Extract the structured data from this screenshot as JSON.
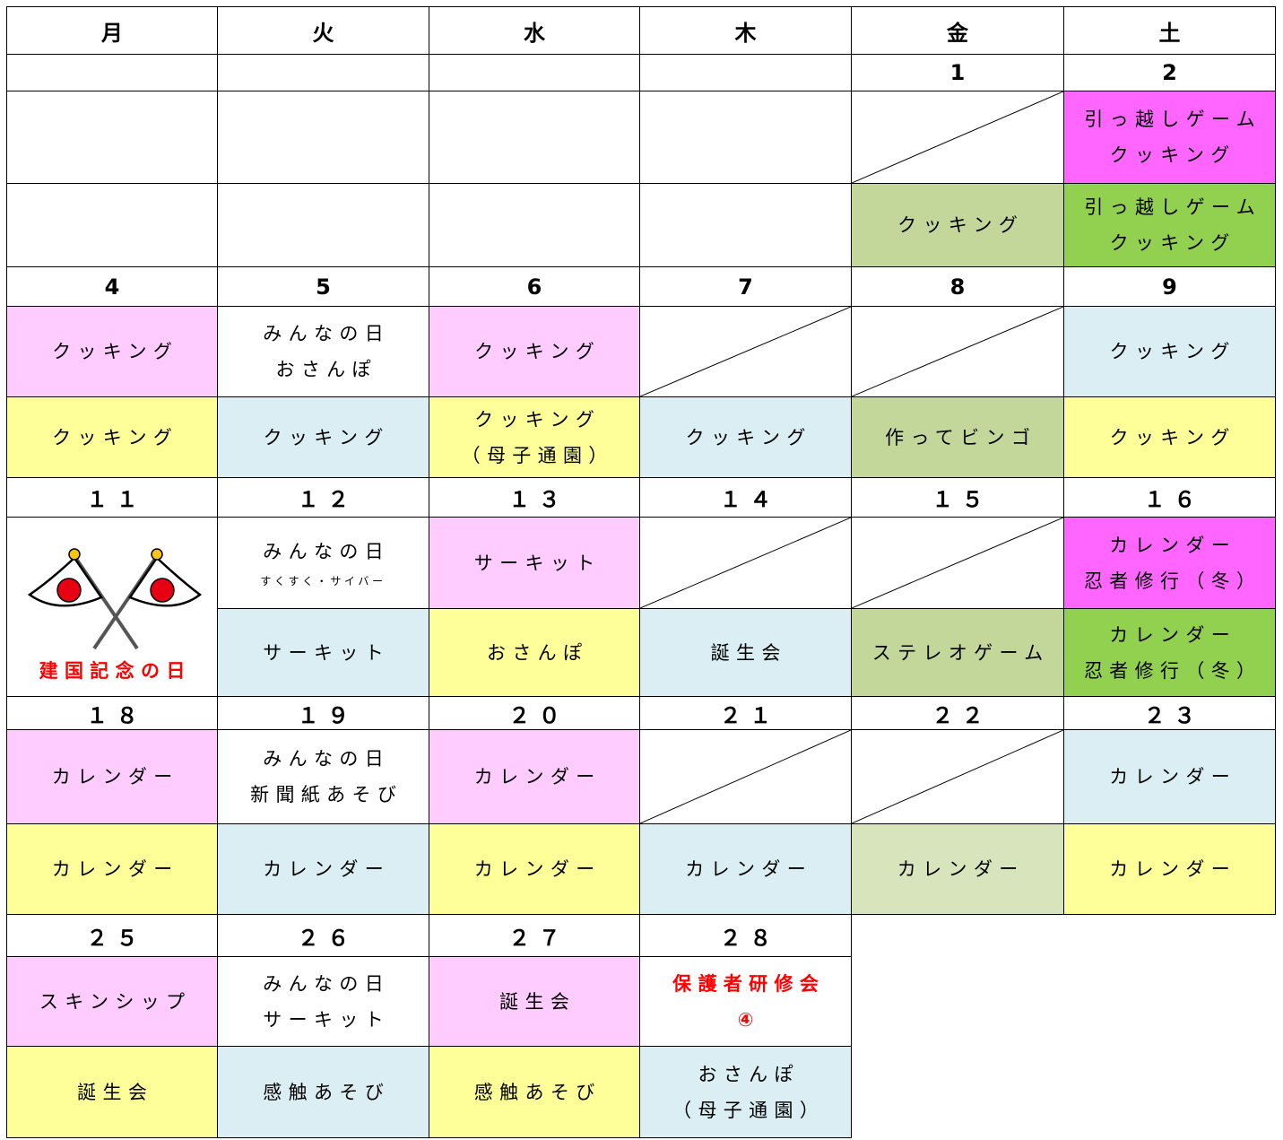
{
  "header": [
    "月",
    "火",
    "水",
    "木",
    "金",
    "土"
  ],
  "weeks": [
    {
      "dates": [
        null,
        null,
        null,
        null,
        "1",
        "2"
      ],
      "rows": [
        [
          {},
          {},
          {},
          {},
          {
            "slash": true
          },
          {
            "lines": [
              "引っ越しゲーム",
              "クッキング"
            ],
            "color": "#ff66ff"
          }
        ],
        [
          {},
          {},
          {},
          {},
          {
            "lines": [
              "クッキング"
            ],
            "color": "#c4d79b"
          },
          {
            "lines": [
              "引っ越しゲーム",
              "クッキング"
            ],
            "color": "#92d050"
          }
        ]
      ]
    },
    {
      "dates": [
        "4",
        "5",
        "6",
        "7",
        "8",
        "9"
      ],
      "rows": [
        [
          {
            "lines": [
              "クッキング"
            ],
            "color": "#ffccff"
          },
          {
            "lines": [
              "みんなの日",
              "おさんぽ"
            ]
          },
          {
            "lines": [
              "クッキング"
            ],
            "color": "#ffccff"
          },
          {
            "slash": true
          },
          {
            "slash": true
          },
          {
            "lines": [
              "クッキング"
            ],
            "color": "#daeef3"
          }
        ],
        [
          {
            "lines": [
              "クッキング"
            ],
            "color": "#ffff99"
          },
          {
            "lines": [
              "クッキング"
            ],
            "color": "#daeef3"
          },
          {
            "lines": [
              "クッキング",
              "（母子通園）"
            ],
            "color": "#ffff99"
          },
          {
            "lines": [
              "クッキング"
            ],
            "color": "#daeef3"
          },
          {
            "lines": [
              "作ってビンゴ"
            ],
            "color": "#c4d79b"
          },
          {
            "lines": [
              "クッキング"
            ],
            "color": "#ffff99"
          }
        ]
      ]
    },
    {
      "dates": [
        "１１",
        "１２",
        "１３",
        "１４",
        "１５",
        "１６"
      ],
      "rows": [
        [
          {
            "lines": [
              "建国記念の日"
            ],
            "text_color": "#ff0000",
            "rowspan": 2,
            "flags": true
          },
          {
            "lines": [
              "みんなの日"
            ],
            "note": "すくすく・サイバー"
          },
          {
            "lines": [
              "サーキット"
            ],
            "color": "#ffccff"
          },
          {
            "slash": true
          },
          {
            "slash": true
          },
          {
            "lines": [
              "カレンダー",
              "忍者修行（冬）"
            ],
            "color": "#ff66ff"
          }
        ],
        [
          {
            "lines": [
              "サーキット"
            ],
            "color": "#daeef3"
          },
          {
            "lines": [
              "おさんぽ"
            ],
            "color": "#ffff99"
          },
          {
            "lines": [
              "誕生会"
            ],
            "color": "#daeef3"
          },
          {
            "lines": [
              "ステレオゲーム"
            ],
            "color": "#c4d79b"
          },
          {
            "lines": [
              "カレンダー",
              "忍者修行（冬）"
            ],
            "color": "#92d050"
          }
        ]
      ]
    },
    {
      "dates": [
        "１８",
        "１９",
        "２０",
        "２１",
        "２２",
        "２３"
      ],
      "rows": [
        [
          {
            "lines": [
              "カレンダー"
            ],
            "color": "#ffccff"
          },
          {
            "lines": [
              "みんなの日",
              "新聞紙あそび"
            ]
          },
          {
            "lines": [
              "カレンダー"
            ],
            "color": "#ffccff"
          },
          {
            "slash": true
          },
          {
            "slash": true
          },
          {
            "lines": [
              "カレンダー"
            ],
            "color": "#daeef3"
          }
        ],
        [
          {
            "lines": [
              "カレンダー"
            ],
            "color": "#ffff99"
          },
          {
            "lines": [
              "カレンダー"
            ],
            "color": "#daeef3"
          },
          {
            "lines": [
              "カレンダー"
            ],
            "color": "#ffff99"
          },
          {
            "lines": [
              "カレンダー"
            ],
            "color": "#daeef3"
          },
          {
            "lines": [
              "カレンダー"
            ],
            "color": "#d8e4bc"
          },
          {
            "lines": [
              "カレンダー"
            ],
            "color": "#ffff99"
          }
        ]
      ]
    },
    {
      "dates": [
        "２５",
        "２６",
        "２７",
        "２８"
      ],
      "rows": [
        [
          {
            "lines": [
              "スキンシップ"
            ],
            "color": "#ffccff"
          },
          {
            "lines": [
              "みんなの日",
              "サーキット"
            ]
          },
          {
            "lines": [
              "誕生会"
            ],
            "color": "#ffccff"
          },
          {
            "lines": [
              "保護者研修会",
              "④"
            ],
            "text_color": "#ff0000"
          }
        ],
        [
          {
            "lines": [
              "誕生会"
            ],
            "color": "#ffff99"
          },
          {
            "lines": [
              "感触あそび"
            ],
            "color": "#daeef3"
          },
          {
            "lines": [
              "感触あそび"
            ],
            "color": "#ffff99"
          },
          {
            "lines": [
              "おさんぽ",
              "（母子通園）"
            ],
            "color": "#daeef3"
          }
        ]
      ]
    }
  ]
}
